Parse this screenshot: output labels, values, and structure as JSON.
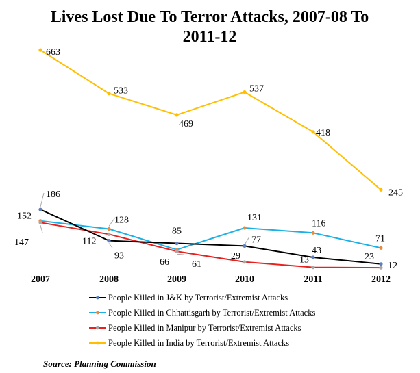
{
  "chart_data": {
    "type": "line",
    "title_line1": "Lives Lost Due To Terror Attacks, 2007-08 To",
    "title_line2": "2011-12",
    "x": [
      "2007",
      "2008",
      "2009",
      "2010",
      "2011",
      "2012"
    ],
    "ylim": [
      0,
      700
    ],
    "grid": false,
    "legend_position": "bottom",
    "series": [
      {
        "name": "People Killed in J&K by Terrorist/Extremist Attacks",
        "values": [
          186,
          93,
          85,
          77,
          43,
          23
        ],
        "labels": [
          "186",
          "93",
          "85",
          "77",
          "43",
          "23"
        ],
        "line_color": "#000000",
        "marker_color": "#5b7fbf"
      },
      {
        "name": "People Killed in Chhattisgarh by Terrorist/Extremist Attacks",
        "values": [
          152,
          128,
          66,
          131,
          116,
          71
        ],
        "labels": [
          "152",
          "128",
          "66",
          "131",
          "116",
          "71"
        ],
        "line_color": "#1ab2e6",
        "marker_color": "#ee8a3c"
      },
      {
        "name": "People Killed in Manipur by Terrorist/Extremist Attacks",
        "values": [
          147,
          112,
          61,
          29,
          13,
          12
        ],
        "labels": [
          "147",
          "112",
          "61",
          "29",
          "13",
          "12"
        ],
        "line_color": "#e8201e",
        "marker_color": "#a8a8a8"
      },
      {
        "name": "People Killed in India by Terrorist/Extremist Attacks",
        "values": [
          663,
          533,
          469,
          537,
          418,
          245
        ],
        "labels": [
          "663",
          "533",
          "469",
          "537",
          "418",
          "245"
        ],
        "line_color": "#ffbf00",
        "marker_color": "#ffbf00"
      }
    ]
  },
  "source": "Source: Planning Commission"
}
